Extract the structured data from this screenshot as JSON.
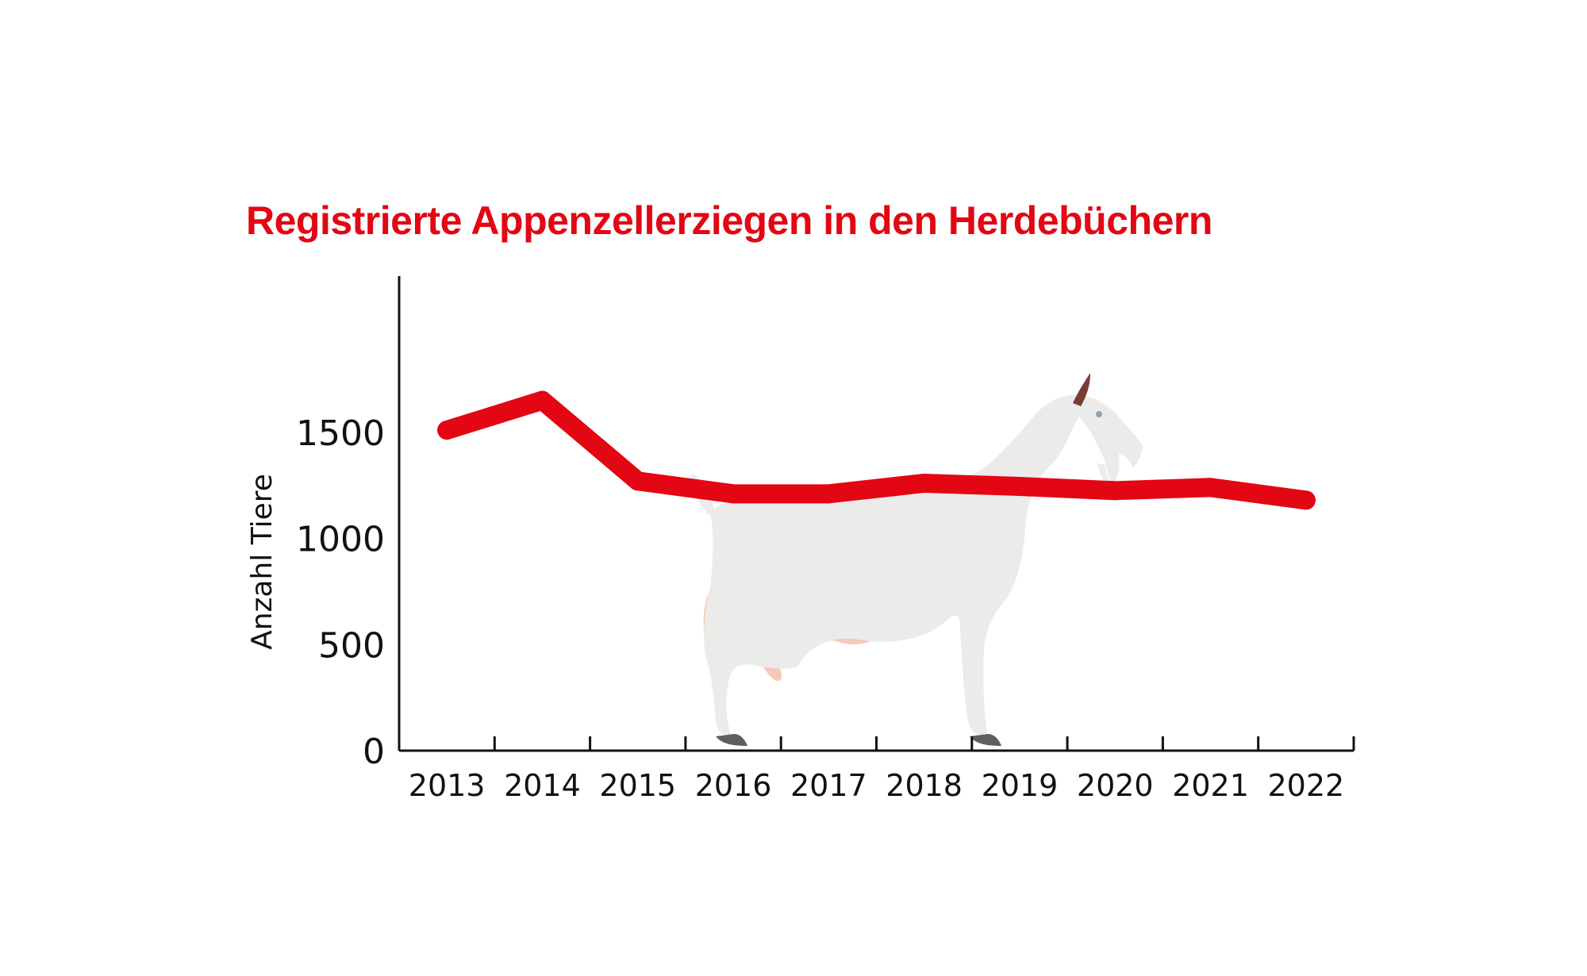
{
  "colors": {
    "series": "#e30613",
    "axis": "#111111",
    "goat": "#ebebea",
    "udder": "#f6c9b8"
  },
  "chart_data": {
    "type": "line",
    "title": "Registrierte Appenzellerziegen in den Herdebüchern",
    "xlabel": "",
    "ylabel": "Anzahl Tiere",
    "categories": [
      "2013",
      "2014",
      "2015",
      "2016",
      "2017",
      "2018",
      "2019",
      "2020",
      "2021",
      "2022"
    ],
    "series": [
      {
        "values": [
          1510,
          1650,
          1270,
          1210,
          1210,
          1260,
          1245,
          1225,
          1240,
          1180
        ]
      }
    ],
    "ylim": [
      0,
      1650
    ],
    "yticks": [
      0,
      500,
      1000,
      1500
    ],
    "grid": false,
    "legend": "none",
    "decoration": "goat-illustration"
  }
}
